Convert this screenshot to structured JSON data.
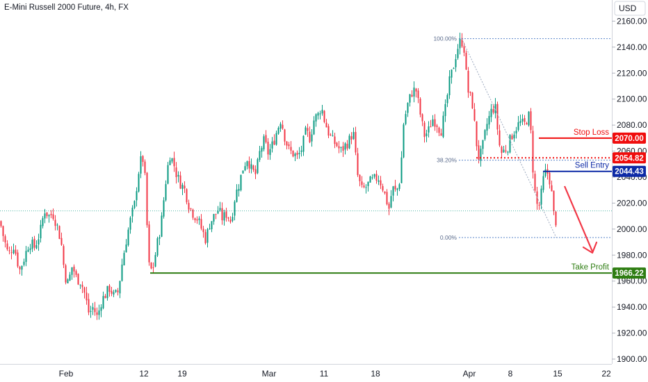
{
  "chart_data": {
    "type": "candlestick",
    "title": "E-Mini Russell 2000 Future, 4h, FX",
    "currency": "USD",
    "y_ticks": [
      1900,
      1920,
      1940,
      1960,
      1980,
      2000,
      2020,
      2040,
      2060,
      2080,
      2100,
      2120,
      2140,
      2160
    ],
    "ylim": [
      1898,
      2168
    ],
    "x_ticks": [
      "Feb",
      "12",
      "19",
      "Mar",
      "11",
      "18",
      "Apr",
      "8",
      "15",
      "22"
    ],
    "colors": {
      "up": "#089981",
      "down": "#f23645",
      "stop": "#f00c0c",
      "entry": "#0d2aa6",
      "tp": "#2e7d12"
    },
    "fibonacci": [
      {
        "label": "100.00%",
        "value": 2146.5
      },
      {
        "label": "38.20%",
        "value": 2053
      },
      {
        "label": "0.00%",
        "value": 1993.5
      }
    ],
    "last_price_line": 2014,
    "levels": [
      {
        "name": "Stop Loss",
        "value": 2070.0,
        "tag": "2070.00",
        "color": "#f00c0c"
      },
      {
        "name": "",
        "value": 2054.82,
        "tag": "2054.82",
        "color": "#f00c0c"
      },
      {
        "name": "Sell Entry",
        "value": 2044.43,
        "tag": "2044.43",
        "color": "#0d2aa6"
      },
      {
        "name": "Take Profit",
        "value": 1966.22,
        "tag": "1966.22",
        "color": "#2e7d12"
      }
    ],
    "price_path": [
      [
        0,
        2006
      ],
      [
        5,
        1994
      ],
      [
        12,
        1980
      ],
      [
        20,
        1988
      ],
      [
        28,
        1968
      ],
      [
        35,
        1978
      ],
      [
        42,
        1990
      ],
      [
        50,
        1986
      ],
      [
        58,
        1998
      ],
      [
        64,
        2015
      ],
      [
        70,
        2010
      ],
      [
        76,
        2012
      ],
      [
        82,
        2003
      ],
      [
        88,
        1990
      ],
      [
        93,
        1965
      ],
      [
        98,
        1958
      ],
      [
        104,
        1972
      ],
      [
        110,
        1962
      ],
      [
        116,
        1960
      ],
      [
        122,
        1950
      ],
      [
        128,
        1935
      ],
      [
        134,
        1940
      ],
      [
        140,
        1932
      ],
      [
        146,
        1945
      ],
      [
        152,
        1950
      ],
      [
        158,
        1955
      ],
      [
        164,
        1948
      ],
      [
        170,
        1952
      ],
      [
        176,
        1975
      ],
      [
        182,
        1993
      ],
      [
        188,
        2008
      ],
      [
        194,
        2020
      ],
      [
        198,
        2040
      ],
      [
        202,
        2052
      ],
      [
        206,
        2054
      ],
      [
        210,
        2030
      ],
      [
        213,
        1975
      ],
      [
        216,
        1968
      ],
      [
        220,
        1970
      ],
      [
        226,
        1988
      ],
      [
        232,
        2005
      ],
      [
        238,
        2035
      ],
      [
        244,
        2058
      ],
      [
        250,
        2050
      ],
      [
        255,
        2040
      ],
      [
        260,
        2035
      ],
      [
        266,
        2030
      ],
      [
        272,
        2018
      ],
      [
        278,
        2012
      ],
      [
        284,
        2008
      ],
      [
        290,
        2000
      ],
      [
        296,
        1992
      ],
      [
        302,
        2005
      ],
      [
        308,
        2010
      ],
      [
        314,
        2015
      ],
      [
        320,
        2008
      ],
      [
        326,
        2012
      ],
      [
        332,
        2006
      ],
      [
        338,
        2025
      ],
      [
        344,
        2035
      ],
      [
        350,
        2048
      ],
      [
        356,
        2055
      ],
      [
        362,
        2045
      ],
      [
        368,
        2042
      ],
      [
        374,
        2060
      ],
      [
        380,
        2068
      ],
      [
        386,
        2058
      ],
      [
        392,
        2065
      ],
      [
        398,
        2075
      ],
      [
        404,
        2085
      ],
      [
        410,
        2070
      ],
      [
        416,
        2060
      ],
      [
        422,
        2058
      ],
      [
        428,
        2055
      ],
      [
        434,
        2062
      ],
      [
        440,
        2075
      ],
      [
        446,
        2070
      ],
      [
        452,
        2085
      ],
      [
        458,
        2088
      ],
      [
        462,
        2095
      ],
      [
        466,
        2085
      ],
      [
        472,
        2075
      ],
      [
        478,
        2068
      ],
      [
        484,
        2065
      ],
      [
        490,
        2060
      ],
      [
        496,
        2064
      ],
      [
        502,
        2068
      ],
      [
        508,
        2075
      ],
      [
        514,
        2042
      ],
      [
        520,
        2030
      ],
      [
        526,
        2032
      ],
      [
        532,
        2036
      ],
      [
        538,
        2038
      ],
      [
        544,
        2040
      ],
      [
        550,
        2033
      ],
      [
        556,
        2022
      ],
      [
        560,
        2015
      ],
      [
        564,
        2032
      ],
      [
        570,
        2028
      ],
      [
        576,
        2040
      ],
      [
        580,
        2080
      ],
      [
        586,
        2095
      ],
      [
        592,
        2105
      ],
      [
        598,
        2108
      ],
      [
        604,
        2090
      ],
      [
        610,
        2072
      ],
      [
        616,
        2075
      ],
      [
        622,
        2085
      ],
      [
        628,
        2082
      ],
      [
        634,
        2075
      ],
      [
        640,
        2090
      ],
      [
        646,
        2112
      ],
      [
        652,
        2125
      ],
      [
        656,
        2135
      ],
      [
        660,
        2143
      ],
      [
        664,
        2145
      ],
      [
        668,
        2138
      ],
      [
        672,
        2108
      ],
      [
        676,
        2102
      ],
      [
        680,
        2095
      ],
      [
        684,
        2072
      ],
      [
        688,
        2055
      ],
      [
        692,
        2058
      ],
      [
        696,
        2068
      ],
      [
        700,
        2080
      ],
      [
        706,
        2090
      ],
      [
        712,
        2095
      ],
      [
        716,
        2075
      ],
      [
        720,
        2058
      ],
      [
        724,
        2060
      ],
      [
        730,
        2063
      ],
      [
        736,
        2072
      ],
      [
        742,
        2078
      ],
      [
        748,
        2082
      ],
      [
        754,
        2080
      ],
      [
        758,
        2085
      ],
      [
        762,
        2088
      ],
      [
        766,
        2050
      ],
      [
        770,
        2025
      ],
      [
        774,
        2015
      ],
      [
        778,
        2025
      ],
      [
        782,
        2040
      ],
      [
        786,
        2045
      ],
      [
        790,
        2040
      ],
      [
        794,
        2025
      ],
      [
        798,
        2003
      ],
      [
        802,
        2012
      ]
    ]
  },
  "header": {
    "title": "E-Mini Russell 2000 Future, 4h, FX"
  }
}
